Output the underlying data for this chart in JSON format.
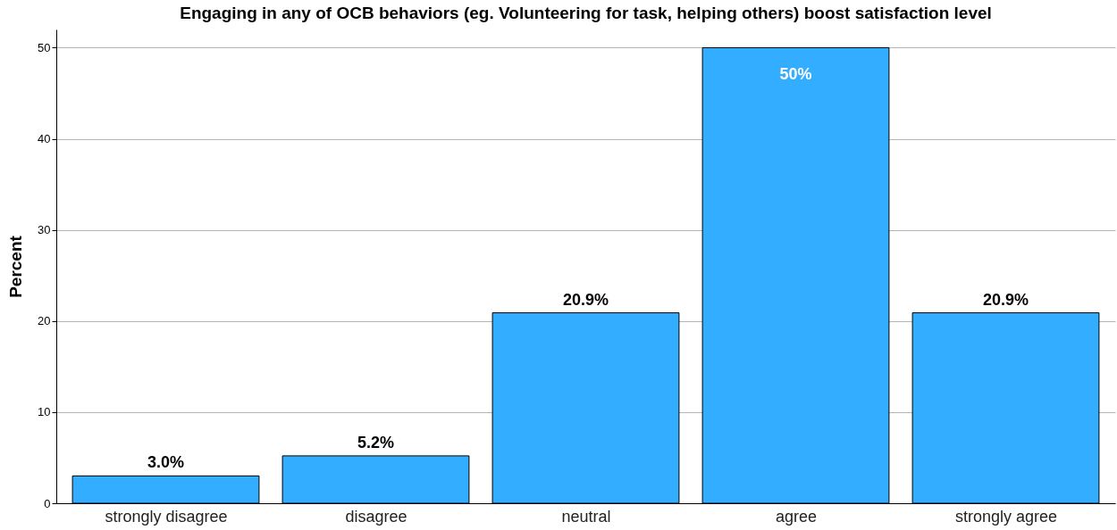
{
  "chart_data": {
    "type": "bar",
    "title": "Engaging in any of OCB behaviors (eg. Volunteering for task, helping others) boost satisfaction level",
    "ylabel": "Percent",
    "categories": [
      "strongly disagree",
      "disagree",
      "neutral",
      "agree",
      "strongly agree"
    ],
    "values": [
      3.0,
      5.2,
      20.9,
      50,
      20.9
    ],
    "value_labels": [
      "3.0%",
      "5.2%",
      "20.9%",
      "50%",
      "20.9%"
    ],
    "color": "#33adff",
    "ylim": [
      0,
      52
    ],
    "yticks": [
      0,
      10,
      20,
      30,
      40,
      50
    ],
    "grid": "y"
  }
}
